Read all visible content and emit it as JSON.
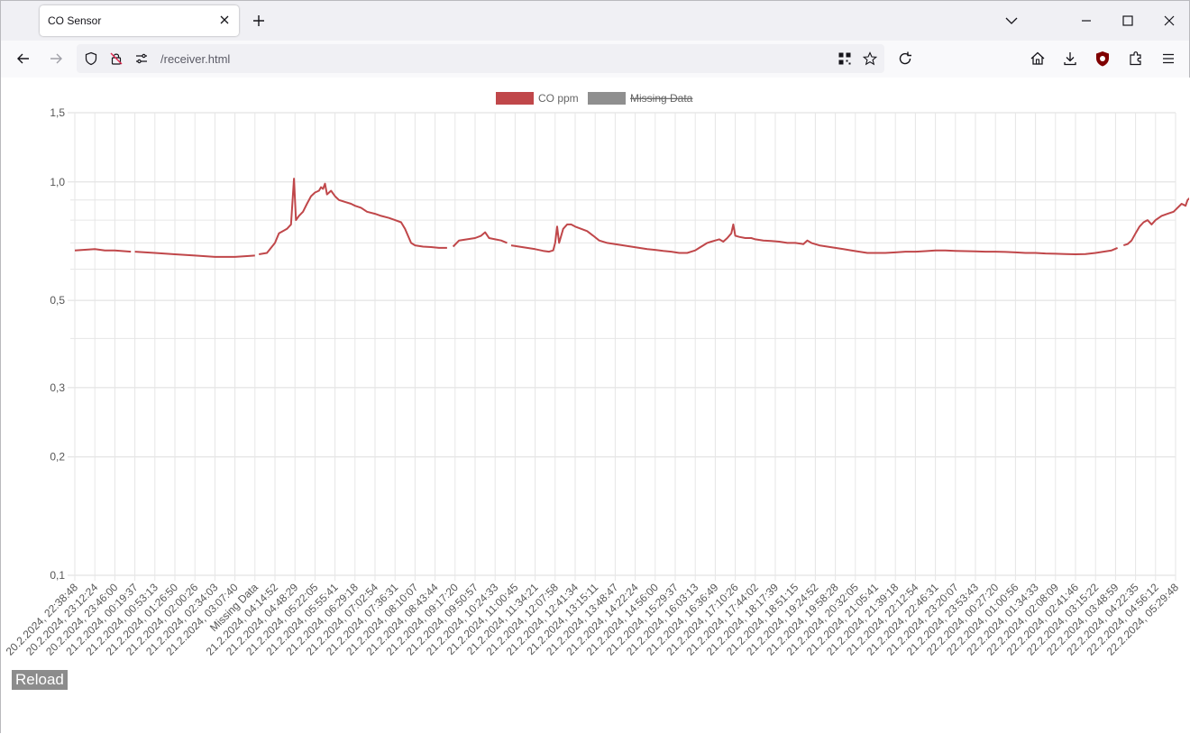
{
  "browser": {
    "tab_title": "CO Sensor",
    "url": "/receiver.html"
  },
  "page": {
    "reload_label": "Reload"
  },
  "colors": {
    "co_line": "#c0474a",
    "missing": "#8f8f8f",
    "grid": "#e6e6e6",
    "tick_text": "#555555"
  },
  "chart_data": {
    "type": "line",
    "y_scale": "log",
    "ylim": [
      0.1,
      1.5
    ],
    "y_ticks": [
      "1,5",
      "1,0",
      "0,5",
      "0,3",
      "0,2",
      "0,1"
    ],
    "y_tick_values": [
      1.5,
      1.0,
      0.5,
      0.3,
      0.2,
      0.1
    ],
    "grid": true,
    "legend_position": "top-center",
    "legend": [
      {
        "label": "CO ppm",
        "color": "#c0474a",
        "hidden": false
      },
      {
        "label": "Missing Data",
        "color": "#8f8f8f",
        "hidden": true
      }
    ],
    "x_labels": [
      "20.2.2024, 22:38:48",
      "20.2.2024, 23:12:24",
      "20.2.2024, 23:46:00",
      "21.2.2024, 00:19:37",
      "21.2.2024, 00:53:13",
      "21.2.2024, 01:26:50",
      "21.2.2024, 02:00:26",
      "21.2.2024, 02:34:03",
      "21.2.2024, 03:07:40",
      "Missing Data",
      "21.2.2024, 04:14:52",
      "21.2.2024, 04:48:29",
      "21.2.2024, 05:22:05",
      "21.2.2024, 05:55:41",
      "21.2.2024, 06:29:18",
      "21.2.2024, 07:02:54",
      "21.2.2024, 07:36:31",
      "21.2.2024, 08:10:07",
      "21.2.2024, 08:43:44",
      "21.2.2024, 09:17:20",
      "21.2.2024, 09:50:57",
      "21.2.2024, 10:24:33",
      "21.2.2024, 11:00:45",
      "21.2.2024, 11:34:21",
      "21.2.2024, 12:07:58",
      "21.2.2024, 12:41:34",
      "21.2.2024, 13:15:11",
      "21.2.2024, 13:48:47",
      "21.2.2024, 14:22:24",
      "21.2.2024, 14:56:00",
      "21.2.2024, 15:29:37",
      "21.2.2024, 16:03:13",
      "21.2.2024, 16:36:49",
      "21.2.2024, 17:10:26",
      "21.2.2024, 17:44:02",
      "21.2.2024, 18:17:39",
      "21.2.2024, 18:51:15",
      "21.2.2024, 19:24:52",
      "21.2.2024, 19:58:28",
      "21.2.2024, 20:32:05",
      "21.2.2024, 21:05:41",
      "21.2.2024, 21:39:18",
      "21.2.2024, 22:12:54",
      "21.2.2024, 22:46:31",
      "21.2.2024, 23:20:07",
      "21.2.2024, 23:53:43",
      "22.2.2024, 00:27:20",
      "22.2.2024, 01:00:56",
      "22.2.2024, 01:34:33",
      "22.2.2024, 02:08:09",
      "22.2.2024, 02:41:46",
      "22.2.2024, 03:15:22",
      "22.2.2024, 03:48:59",
      "22.2.2024, 04:22:35",
      "22.2.2024, 04:56:12",
      "22.2.2024, 05:29:48"
    ],
    "series": [
      {
        "name": "CO ppm",
        "segments": [
          [
            [
              0.0,
              0.67
            ],
            [
              1.0,
              0.675
            ],
            [
              1.5,
              0.67
            ],
            [
              2.0,
              0.67
            ],
            [
              2.8,
              0.665
            ]
          ],
          [
            [
              3.0,
              0.665
            ],
            [
              4.0,
              0.66
            ],
            [
              5.0,
              0.655
            ],
            [
              6.0,
              0.65
            ],
            [
              7.0,
              0.645
            ],
            [
              8.0,
              0.645
            ],
            [
              8.6,
              0.648
            ],
            [
              9.0,
              0.65
            ]
          ],
          [
            [
              9.2,
              0.655
            ],
            [
              9.6,
              0.66
            ],
            [
              9.8,
              0.68
            ],
            [
              10.0,
              0.7
            ],
            [
              10.2,
              0.74
            ],
            [
              10.4,
              0.75
            ],
            [
              10.6,
              0.76
            ],
            [
              10.8,
              0.78
            ],
            [
              10.95,
              1.02
            ],
            [
              11.05,
              0.8
            ],
            [
              11.2,
              0.82
            ],
            [
              11.4,
              0.84
            ],
            [
              11.6,
              0.88
            ],
            [
              11.8,
              0.92
            ],
            [
              12.0,
              0.94
            ],
            [
              12.2,
              0.95
            ],
            [
              12.3,
              0.97
            ],
            [
              12.4,
              0.96
            ],
            [
              12.5,
              0.99
            ],
            [
              12.6,
              0.93
            ],
            [
              12.8,
              0.95
            ],
            [
              13.0,
              0.92
            ],
            [
              13.2,
              0.9
            ],
            [
              13.5,
              0.89
            ],
            [
              13.8,
              0.88
            ],
            [
              14.0,
              0.87
            ],
            [
              14.3,
              0.86
            ],
            [
              14.6,
              0.84
            ],
            [
              15.0,
              0.83
            ],
            [
              15.3,
              0.82
            ],
            [
              15.7,
              0.81
            ],
            [
              16.0,
              0.8
            ],
            [
              16.3,
              0.79
            ],
            [
              16.5,
              0.76
            ],
            [
              16.8,
              0.7
            ],
            [
              17.0,
              0.69
            ],
            [
              17.4,
              0.685
            ],
            [
              17.8,
              0.683
            ],
            [
              18.2,
              0.68
            ],
            [
              18.6,
              0.68
            ]
          ],
          [
            [
              18.9,
              0.685
            ],
            [
              19.2,
              0.71
            ],
            [
              19.6,
              0.715
            ],
            [
              20.0,
              0.72
            ],
            [
              20.3,
              0.73
            ],
            [
              20.5,
              0.745
            ],
            [
              20.7,
              0.72
            ],
            [
              21.0,
              0.715
            ],
            [
              21.3,
              0.71
            ],
            [
              21.6,
              0.7
            ]
          ],
          [
            [
              21.8,
              0.69
            ],
            [
              22.2,
              0.685
            ],
            [
              22.6,
              0.68
            ],
            [
              23.0,
              0.675
            ],
            [
              23.4,
              0.668
            ],
            [
              23.7,
              0.665
            ],
            [
              23.9,
              0.67
            ],
            [
              24.0,
              0.7
            ],
            [
              24.1,
              0.77
            ],
            [
              24.2,
              0.7
            ],
            [
              24.4,
              0.76
            ],
            [
              24.6,
              0.78
            ],
            [
              24.8,
              0.78
            ],
            [
              25.0,
              0.77
            ],
            [
              25.3,
              0.76
            ],
            [
              25.6,
              0.75
            ],
            [
              25.9,
              0.73
            ],
            [
              26.2,
              0.71
            ],
            [
              26.6,
              0.7
            ],
            [
              27.0,
              0.695
            ],
            [
              27.4,
              0.69
            ],
            [
              27.8,
              0.685
            ],
            [
              28.2,
              0.68
            ],
            [
              28.6,
              0.675
            ],
            [
              29.0,
              0.672
            ],
            [
              29.4,
              0.668
            ],
            [
              29.8,
              0.665
            ],
            [
              30.2,
              0.66
            ],
            [
              30.6,
              0.66
            ],
            [
              30.8,
              0.665
            ],
            [
              31.0,
              0.67
            ],
            [
              31.2,
              0.68
            ],
            [
              31.4,
              0.69
            ],
            [
              31.6,
              0.7
            ],
            [
              31.8,
              0.705
            ],
            [
              32.0,
              0.71
            ],
            [
              32.2,
              0.715
            ],
            [
              32.4,
              0.705
            ],
            [
              32.6,
              0.72
            ],
            [
              32.8,
              0.74
            ],
            [
              32.9,
              0.78
            ],
            [
              33.0,
              0.73
            ],
            [
              33.2,
              0.725
            ],
            [
              33.5,
              0.72
            ],
            [
              33.8,
              0.72
            ],
            [
              34.0,
              0.715
            ],
            [
              34.4,
              0.71
            ],
            [
              34.8,
              0.708
            ],
            [
              35.2,
              0.705
            ],
            [
              35.6,
              0.7
            ],
            [
              36.0,
              0.7
            ],
            [
              36.4,
              0.695
            ],
            [
              36.6,
              0.71
            ],
            [
              36.8,
              0.7
            ],
            [
              37.2,
              0.69
            ],
            [
              37.6,
              0.685
            ],
            [
              38.0,
              0.68
            ],
            [
              38.4,
              0.675
            ],
            [
              38.8,
              0.67
            ],
            [
              39.2,
              0.665
            ],
            [
              39.6,
              0.66
            ],
            [
              40.0,
              0.66
            ],
            [
              40.5,
              0.66
            ],
            [
              41.0,
              0.662
            ],
            [
              41.5,
              0.665
            ],
            [
              42.0,
              0.665
            ],
            [
              42.5,
              0.667
            ],
            [
              43.0,
              0.67
            ],
            [
              43.5,
              0.67
            ],
            [
              44.0,
              0.668
            ],
            [
              44.5,
              0.667
            ],
            [
              45.0,
              0.666
            ],
            [
              45.5,
              0.665
            ],
            [
              46.0,
              0.665
            ],
            [
              46.5,
              0.664
            ],
            [
              47.0,
              0.662
            ],
            [
              47.5,
              0.66
            ],
            [
              48.0,
              0.66
            ],
            [
              48.5,
              0.658
            ],
            [
              49.0,
              0.657
            ],
            [
              49.5,
              0.656
            ],
            [
              50.0,
              0.655
            ],
            [
              50.5,
              0.656
            ],
            [
              51.0,
              0.66
            ],
            [
              51.4,
              0.665
            ],
            [
              51.8,
              0.67
            ],
            [
              52.1,
              0.68
            ]
          ],
          [
            [
              52.4,
              0.69
            ],
            [
              52.6,
              0.695
            ],
            [
              52.8,
              0.71
            ],
            [
              53.0,
              0.74
            ],
            [
              53.2,
              0.77
            ],
            [
              53.4,
              0.79
            ],
            [
              53.6,
              0.8
            ],
            [
              53.8,
              0.78
            ],
            [
              54.0,
              0.8
            ],
            [
              54.3,
              0.82
            ],
            [
              54.6,
              0.83
            ],
            [
              54.9,
              0.84
            ],
            [
              55.1,
              0.86
            ],
            [
              55.3,
              0.88
            ],
            [
              55.5,
              0.87
            ],
            [
              55.6,
              0.9
            ],
            [
              55.8,
              0.92
            ],
            [
              55.9,
              0.95
            ],
            [
              56.0,
              0.93
            ],
            [
              56.1,
              0.98
            ],
            [
              56.2,
              1.05
            ],
            [
              56.3,
              1.1
            ],
            [
              56.4,
              1.07
            ],
            [
              56.5,
              1.1
            ]
          ]
        ]
      }
    ]
  }
}
